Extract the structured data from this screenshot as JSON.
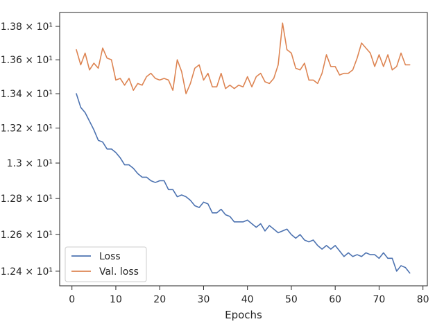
{
  "chart_data": {
    "type": "line",
    "xlabel": "Epochs",
    "ylabel": "",
    "xlim": [
      -2.8,
      81
    ],
    "ylim": [
      12.321,
      13.884
    ],
    "y_scale": "log",
    "grid": false,
    "legend_position": "lower-left",
    "x_ticks": [
      0,
      10,
      20,
      30,
      40,
      50,
      60,
      70,
      80
    ],
    "y_ticks": [
      {
        "value": 12.4,
        "label": "1.24 × 10¹"
      },
      {
        "value": 12.6,
        "label": "1.26 × 10¹"
      },
      {
        "value": 12.8,
        "label": "1.28 × 10¹"
      },
      {
        "value": 13.0,
        "label": "1.3 × 10¹"
      },
      {
        "value": 13.2,
        "label": "1.32 × 10¹"
      },
      {
        "value": 13.4,
        "label": "1.34 × 10¹"
      },
      {
        "value": 13.6,
        "label": "1.36 × 10¹"
      },
      {
        "value": 13.8,
        "label": "1.38 × 10¹"
      }
    ],
    "x": [
      1,
      2,
      3,
      4,
      5,
      6,
      7,
      8,
      9,
      10,
      11,
      12,
      13,
      14,
      15,
      16,
      17,
      18,
      19,
      20,
      21,
      22,
      23,
      24,
      25,
      26,
      27,
      28,
      29,
      30,
      31,
      32,
      33,
      34,
      35,
      36,
      37,
      38,
      39,
      40,
      41,
      42,
      43,
      44,
      45,
      46,
      47,
      48,
      49,
      50,
      51,
      52,
      53,
      54,
      55,
      56,
      57,
      58,
      59,
      60,
      61,
      62,
      63,
      64,
      65,
      66,
      67,
      68,
      69,
      70,
      71,
      72,
      73,
      74,
      75,
      76,
      77
    ],
    "series": [
      {
        "name": "Loss",
        "color": "#4c72b0",
        "values": [
          13.4,
          13.32,
          13.29,
          13.24,
          13.19,
          13.13,
          13.12,
          13.08,
          13.08,
          13.06,
          13.03,
          12.99,
          12.99,
          12.97,
          12.94,
          12.92,
          12.92,
          12.9,
          12.89,
          12.9,
          12.9,
          12.85,
          12.85,
          12.81,
          12.82,
          12.81,
          12.79,
          12.76,
          12.75,
          12.78,
          12.77,
          12.72,
          12.72,
          12.74,
          12.71,
          12.7,
          12.67,
          12.67,
          12.67,
          12.68,
          12.66,
          12.64,
          12.66,
          12.62,
          12.65,
          12.63,
          12.61,
          12.62,
          12.63,
          12.6,
          12.58,
          12.6,
          12.57,
          12.56,
          12.57,
          12.54,
          12.52,
          12.54,
          12.52,
          12.54,
          12.51,
          12.48,
          12.5,
          12.48,
          12.49,
          12.48,
          12.5,
          12.49,
          12.49,
          12.47,
          12.5,
          12.47,
          12.47,
          12.4,
          12.43,
          12.42,
          12.39
        ]
      },
      {
        "name": "Val. loss",
        "color": "#dd8452",
        "values": [
          13.66,
          13.57,
          13.64,
          13.54,
          13.58,
          13.55,
          13.67,
          13.61,
          13.6,
          13.48,
          13.49,
          13.45,
          13.49,
          13.42,
          13.46,
          13.45,
          13.5,
          13.52,
          13.49,
          13.48,
          13.49,
          13.48,
          13.42,
          13.6,
          13.53,
          13.4,
          13.46,
          13.55,
          13.57,
          13.48,
          13.52,
          13.44,
          13.44,
          13.52,
          13.43,
          13.45,
          13.43,
          13.45,
          13.44,
          13.5,
          13.44,
          13.5,
          13.52,
          13.47,
          13.46,
          13.49,
          13.57,
          13.82,
          13.66,
          13.64,
          13.55,
          13.54,
          13.58,
          13.48,
          13.48,
          13.46,
          13.52,
          13.63,
          13.56,
          13.56,
          13.51,
          13.52,
          13.52,
          13.54,
          13.61,
          13.7,
          13.67,
          13.64,
          13.56,
          13.63,
          13.56,
          13.63,
          13.54,
          13.56,
          13.64,
          13.57,
          13.57
        ]
      }
    ]
  }
}
